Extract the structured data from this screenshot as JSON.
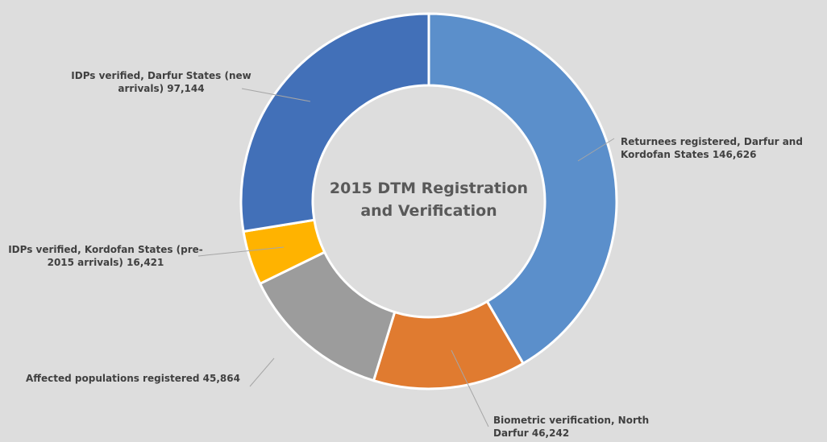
{
  "chart_data": {
    "type": "donut",
    "title": "2015 DTM Registration and Verification",
    "categories": [
      "Returnees registered, Darfur and Kordofan States",
      "Biometric verification, North Darfur",
      "Affected populations registered",
      "IDPs verified, Kordofan States (pre-2015 arrivals)",
      "IDPs verified, Darfur States (new arrivals)"
    ],
    "values": [
      146626,
      46242,
      45864,
      16421,
      97144
    ],
    "value_labels": [
      "146,626",
      "46,242",
      "45,864",
      "16,421",
      "97,144"
    ],
    "colors": [
      "#5b8fcb",
      "#e07b30",
      "#9c9c9c",
      "#ffb300",
      "#4270b8"
    ]
  }
}
